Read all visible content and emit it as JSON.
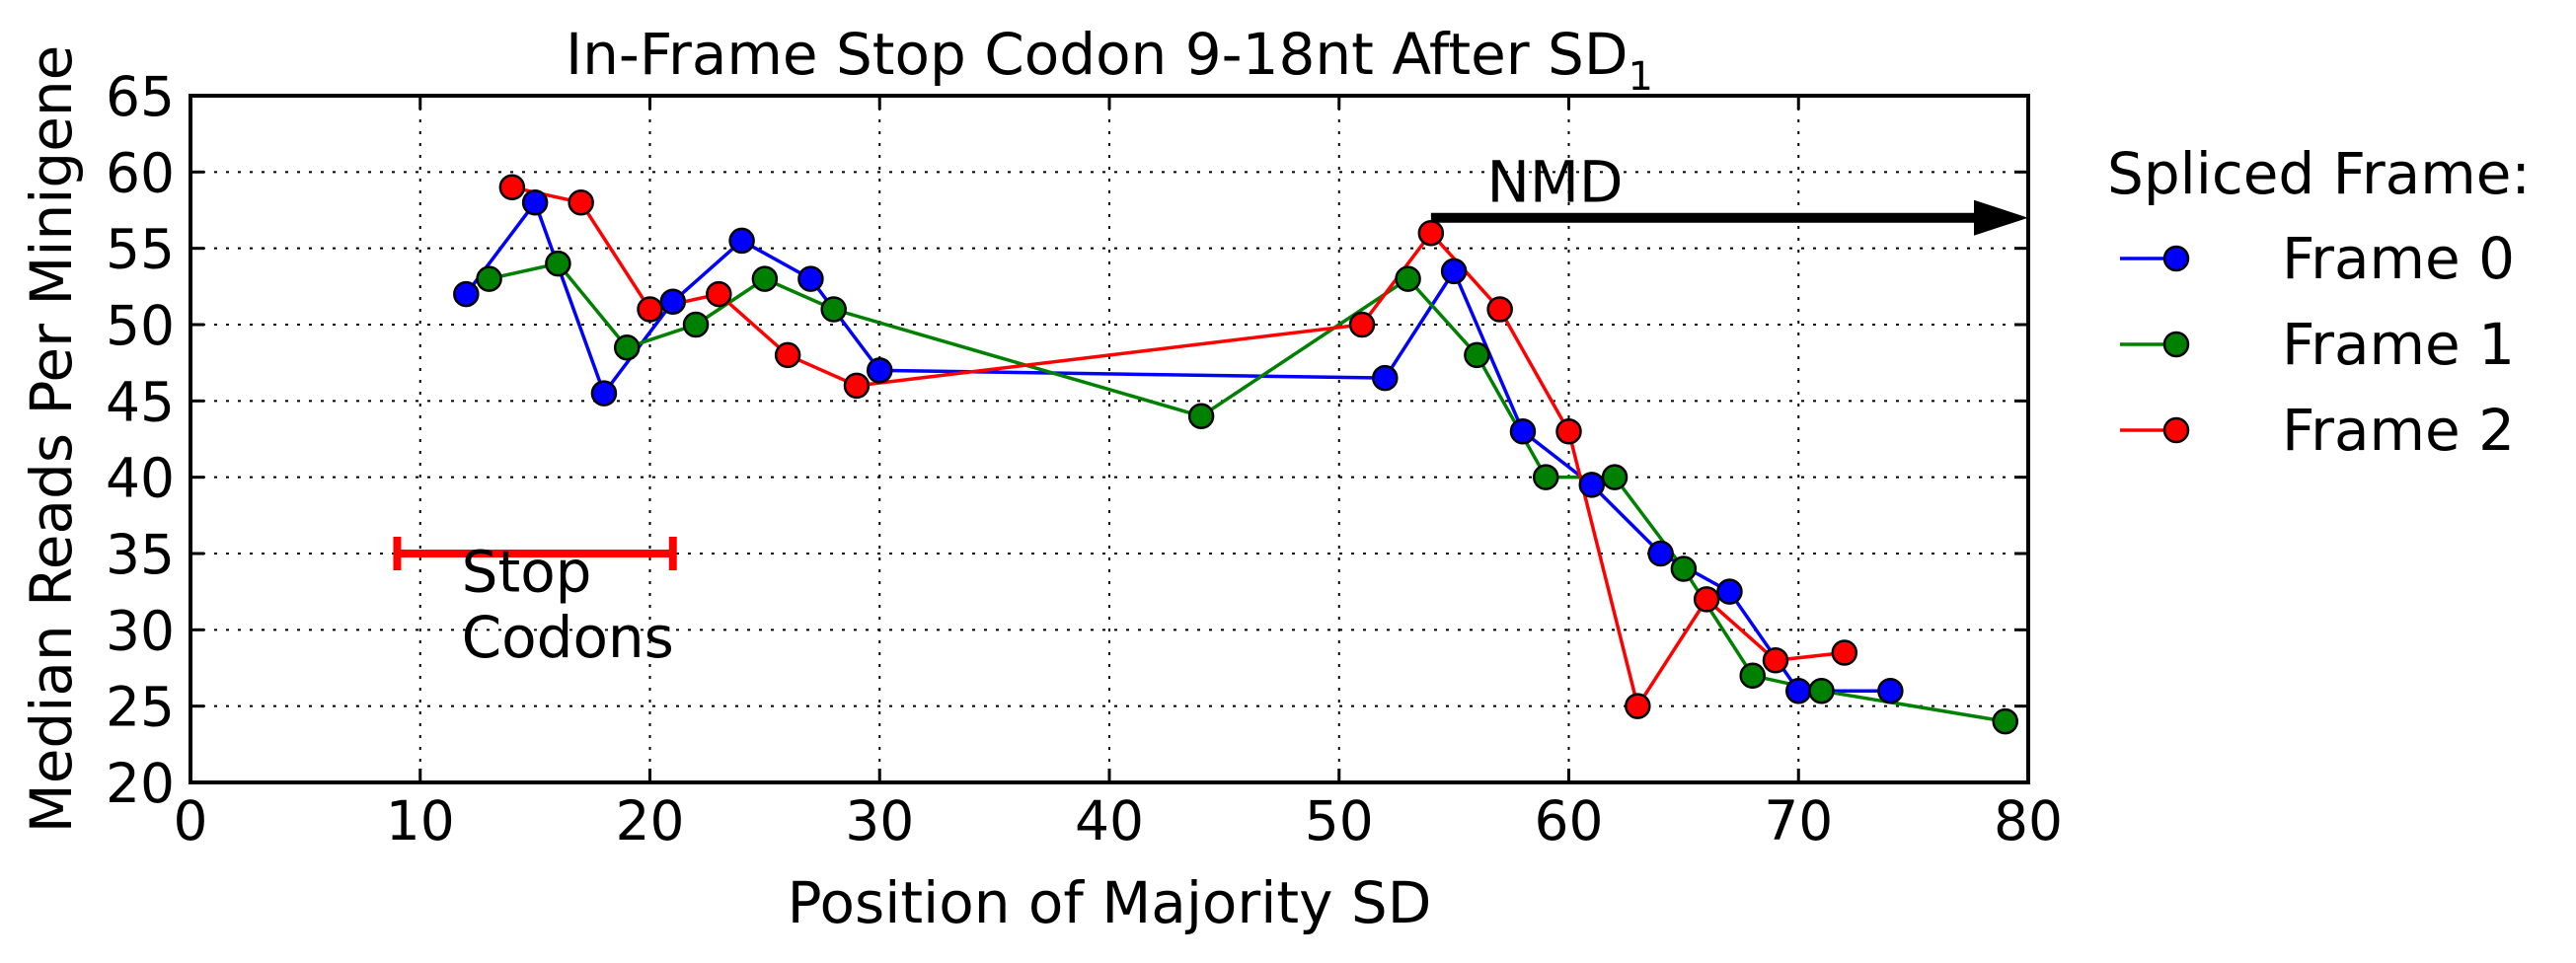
{
  "chart_data": {
    "type": "line",
    "title": "In-Frame Stop Codon 9-18nt After SD",
    "title_subscript": "1",
    "xlabel": "Position of Majority SD",
    "ylabel": "Median Reads Per Minigene",
    "xlim": [
      0,
      80
    ],
    "ylim": [
      20,
      65
    ],
    "xticks": [
      0,
      10,
      20,
      30,
      40,
      50,
      60,
      70,
      80
    ],
    "yticks": [
      20,
      25,
      30,
      35,
      40,
      45,
      50,
      55,
      60,
      65
    ],
    "grid": true,
    "legend": {
      "title": "Spliced Frame:",
      "placement": "outside-right"
    },
    "series": [
      {
        "name": "Frame 0",
        "color": "#0000ff",
        "points": [
          [
            12,
            52
          ],
          [
            15,
            58
          ],
          [
            18,
            45.5
          ],
          [
            21,
            51.5
          ],
          [
            24,
            55.5
          ],
          [
            27,
            53
          ],
          [
            30,
            47
          ],
          [
            52,
            46.5
          ],
          [
            55,
            53.5
          ],
          [
            58,
            43
          ],
          [
            61,
            39.5
          ],
          [
            64,
            35
          ],
          [
            67,
            32.5
          ],
          [
            70,
            26
          ],
          [
            74,
            26
          ]
        ]
      },
      {
        "name": "Frame 1",
        "color": "#008000",
        "points": [
          [
            13,
            53
          ],
          [
            16,
            54
          ],
          [
            19,
            48.5
          ],
          [
            22,
            50
          ],
          [
            25,
            53
          ],
          [
            28,
            51
          ],
          [
            44,
            44
          ],
          [
            53,
            53
          ],
          [
            56,
            48
          ],
          [
            59,
            40
          ],
          [
            62,
            40
          ],
          [
            65,
            34
          ],
          [
            68,
            27
          ],
          [
            71,
            26
          ],
          [
            79,
            24
          ]
        ]
      },
      {
        "name": "Frame 2",
        "color": "#ff0000",
        "points": [
          [
            14,
            59
          ],
          [
            17,
            58
          ],
          [
            20,
            51
          ],
          [
            23,
            52
          ],
          [
            26,
            48
          ],
          [
            29,
            46
          ],
          [
            51,
            50
          ],
          [
            54,
            56
          ],
          [
            57,
            51
          ],
          [
            60,
            43
          ],
          [
            63,
            25
          ],
          [
            66,
            32
          ],
          [
            69,
            28
          ],
          [
            72,
            28.5
          ]
        ]
      }
    ],
    "annotations": {
      "stop_codons": {
        "label_line1": "Stop",
        "label_line2": "Codons",
        "x_range": [
          9,
          21
        ],
        "y": 35,
        "color": "#ff0000"
      },
      "nmd": {
        "label": "NMD",
        "x_range": [
          54,
          80
        ],
        "y": 57,
        "color": "#000000"
      }
    }
  }
}
